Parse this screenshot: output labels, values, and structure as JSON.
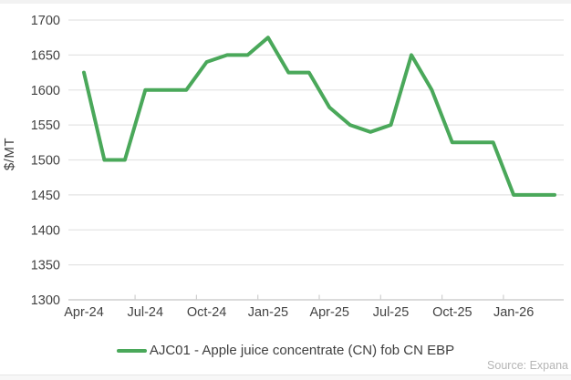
{
  "chart_data": {
    "type": "line",
    "title": "",
    "ylabel": "$/MT",
    "xlabel": "",
    "ylim": [
      1300,
      1700
    ],
    "y_tick_step": 50,
    "y_tick_labels": [
      "1700",
      "1650",
      "1600",
      "1550",
      "1500",
      "1450",
      "1400",
      "1350",
      "1300"
    ],
    "x": [
      "Apr-24",
      "May-24",
      "Jun-24",
      "Jul-24",
      "Aug-24",
      "Sep-24",
      "Oct-24",
      "Nov-24",
      "Dec-24",
      "Jan-25",
      "Feb-25",
      "Mar-25",
      "Apr-25",
      "May-25",
      "Jun-25",
      "Jul-25",
      "Aug-25",
      "Sep-25",
      "Oct-25",
      "Nov-25",
      "Dec-25",
      "Jan-26",
      "Feb-26",
      "Mar-26"
    ],
    "x_tick_labels": [
      "Apr-24",
      "Jul-24",
      "Oct-24",
      "Jan-25",
      "Apr-25",
      "Jul-25",
      "Oct-25",
      "Jan-26"
    ],
    "series": [
      {
        "name": "AJC01 - Apple juice concentrate (CN) fob CN EBP",
        "color": "#4aa85a",
        "values": [
          1625,
          1500,
          1500,
          1600,
          1600,
          1600,
          1640,
          1650,
          1650,
          1675,
          1625,
          1625,
          1575,
          1550,
          1540,
          1550,
          1650,
          1600,
          1525,
          1525,
          1525,
          1450,
          1450,
          1450
        ]
      }
    ],
    "grid": "horizontal",
    "legend_position": "bottom"
  },
  "source_text": "Source: Expana",
  "colors": {
    "line": "#4aa85a",
    "gridline": "#e4e4e4",
    "axis_line": "#cfcfcf",
    "tick_text": "#424242",
    "source_text": "#b5b5b5"
  }
}
